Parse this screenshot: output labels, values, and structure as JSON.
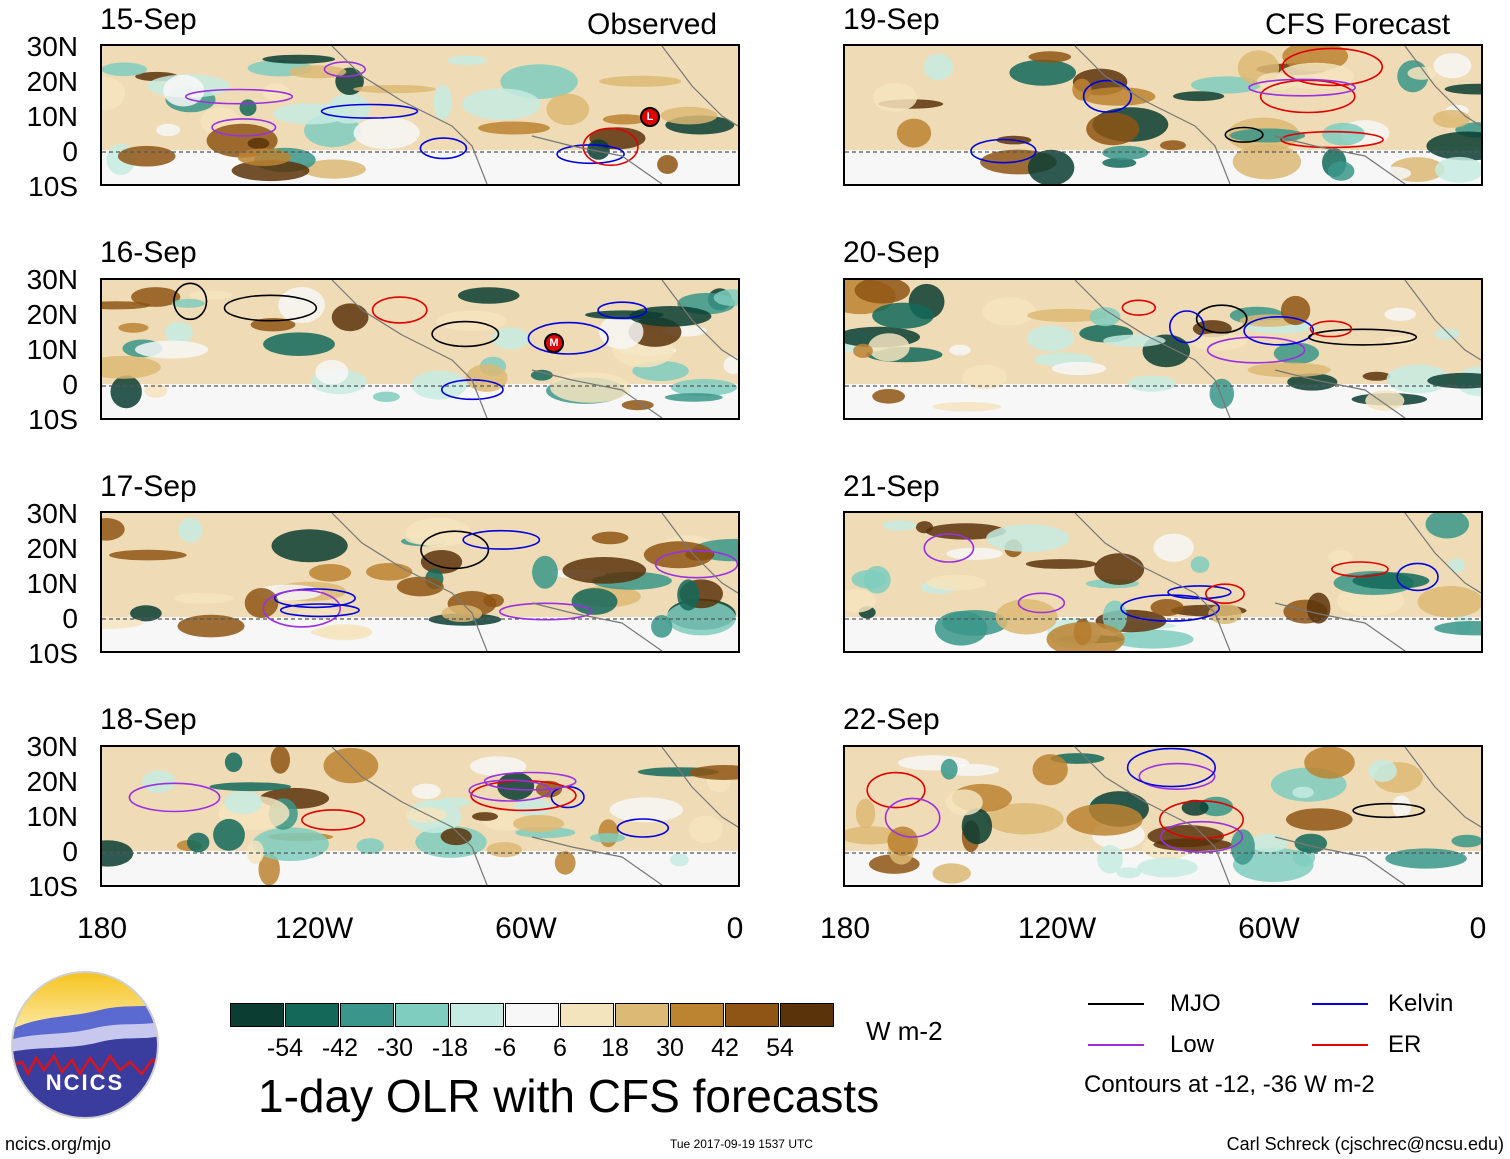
{
  "header": {
    "observed_label": "Observed",
    "forecast_label": "CFS Forecast"
  },
  "observed_panels": [
    {
      "date": "15-Sep"
    },
    {
      "date": "16-Sep"
    },
    {
      "date": "17-Sep"
    },
    {
      "date": "18-Sep"
    }
  ],
  "forecast_panels": [
    {
      "date": "19-Sep"
    },
    {
      "date": "20-Sep"
    },
    {
      "date": "21-Sep"
    },
    {
      "date": "22-Sep"
    }
  ],
  "axes": {
    "lat_ticks": [
      "30N",
      "20N",
      "10N",
      "0",
      "10S"
    ],
    "lon_ticks": [
      "180",
      "120W",
      "60W",
      "0"
    ]
  },
  "colorbar": {
    "unit": "W m-2",
    "tick_labels": [
      "-54",
      "-42",
      "-30",
      "-18",
      "-6",
      "6",
      "18",
      "30",
      "42",
      "54"
    ],
    "colors": [
      "#0b3d33",
      "#13685a",
      "#3a968a",
      "#7fcdbe",
      "#c6ebe2",
      "#f7f7f7",
      "#f4e4be",
      "#dcb974",
      "#bc8331",
      "#8e5514",
      "#5b330b"
    ]
  },
  "legend": {
    "items": [
      {
        "label": "MJO",
        "color": "#000000"
      },
      {
        "label": "Kelvin",
        "color": "#0000dd"
      },
      {
        "label": "Low",
        "color": "#9b30e0"
      },
      {
        "label": "ER",
        "color": "#e00000"
      }
    ],
    "note": "Contours at -12, -36 W m-2"
  },
  "title": "1-day OLR with CFS forecasts",
  "footer": {
    "url": "ncics.org/mjo",
    "timestamp": "Tue 2017-09-19 1537 UTC",
    "credit": "Carl Schreck (cjschrec@ncsu.edu)"
  },
  "logo": {
    "text": "NCICS"
  },
  "storm_markers": [
    "L",
    "M"
  ]
}
